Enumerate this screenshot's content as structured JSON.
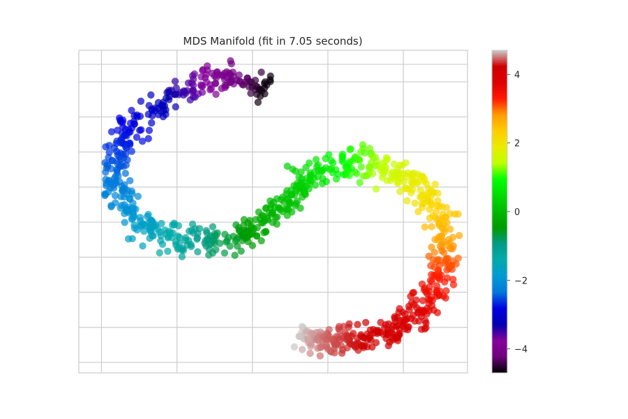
{
  "chart_data": {
    "type": "scatter",
    "title": "MDS Manifold (fit in 7.05 seconds)",
    "xlabel": "",
    "ylabel": "",
    "grid": true,
    "x_axis": {
      "range": [
        -2.8,
        2.35
      ],
      "gridlines": [
        -2.5,
        -1.5,
        -0.5,
        0.5,
        1.5
      ],
      "tick_labels_shown": false
    },
    "y_axis": {
      "range": [
        -2.4,
        2.2
      ],
      "gridlines": [
        -2.25,
        -1.75,
        -1.25,
        -0.75,
        -0.25,
        0.25,
        0.75,
        1.25,
        1.75,
        2.0
      ],
      "tick_labels_shown": false
    },
    "marker_alpha": 0.7,
    "colormap": "nipy_spectral",
    "color_value_range": [
      -4.7,
      4.7
    ],
    "colorbar": {
      "placement": "right",
      "range": [
        -4.7,
        4.7
      ],
      "ticks": [
        -4,
        -2,
        0,
        2,
        4
      ],
      "tick_labels": [
        "−4",
        "−2",
        "0",
        "2",
        "4"
      ]
    },
    "series": [
      {
        "color_by": "position along manifold (t)",
        "t_range": [
          -4.7,
          4.7
        ],
        "point_count": 1000,
        "points_schema": [
          "x",
          "y",
          "t"
        ],
        "points": [
          [
            -0.3,
            1.65,
            -4.7
          ],
          [
            -0.45,
            1.7,
            -4.5
          ],
          [
            -0.7,
            1.78,
            -4.2
          ],
          [
            -1.0,
            1.8,
            -3.9
          ],
          [
            -1.3,
            1.7,
            -3.6
          ],
          [
            -1.6,
            1.5,
            -3.3
          ],
          [
            -1.9,
            1.3,
            -3.0
          ],
          [
            -2.15,
            1.05,
            -2.8
          ],
          [
            -2.3,
            0.75,
            -2.6
          ],
          [
            -2.35,
            0.45,
            -2.4
          ],
          [
            -2.3,
            0.15,
            -2.2
          ],
          [
            -2.15,
            -0.1,
            -2.0
          ],
          [
            -1.9,
            -0.35,
            -1.7
          ],
          [
            -1.6,
            -0.45,
            -1.4
          ],
          [
            -1.3,
            -0.5,
            -1.1
          ],
          [
            -1.0,
            -0.55,
            -0.8
          ],
          [
            -0.75,
            -0.5,
            -0.6
          ],
          [
            -0.5,
            -0.4,
            -0.4
          ],
          [
            -0.3,
            -0.25,
            -0.2
          ],
          [
            -0.15,
            -0.05,
            0.0
          ],
          [
            0.1,
            0.3,
            0.3
          ],
          [
            0.4,
            0.5,
            0.6
          ],
          [
            0.7,
            0.6,
            0.9
          ],
          [
            1.0,
            0.6,
            1.2
          ],
          [
            1.3,
            0.5,
            1.5
          ],
          [
            1.6,
            0.35,
            1.8
          ],
          [
            1.85,
            0.1,
            2.1
          ],
          [
            2.0,
            -0.15,
            2.4
          ],
          [
            2.05,
            -0.45,
            2.7
          ],
          [
            2.05,
            -0.75,
            3.0
          ],
          [
            2.0,
            -1.05,
            3.3
          ],
          [
            1.85,
            -1.35,
            3.6
          ],
          [
            1.55,
            -1.65,
            3.9
          ],
          [
            1.2,
            -1.85,
            4.1
          ],
          [
            0.8,
            -1.95,
            4.3
          ],
          [
            0.4,
            -1.95,
            4.5
          ],
          [
            0.1,
            -1.85,
            4.7
          ]
        ]
      }
    ]
  }
}
